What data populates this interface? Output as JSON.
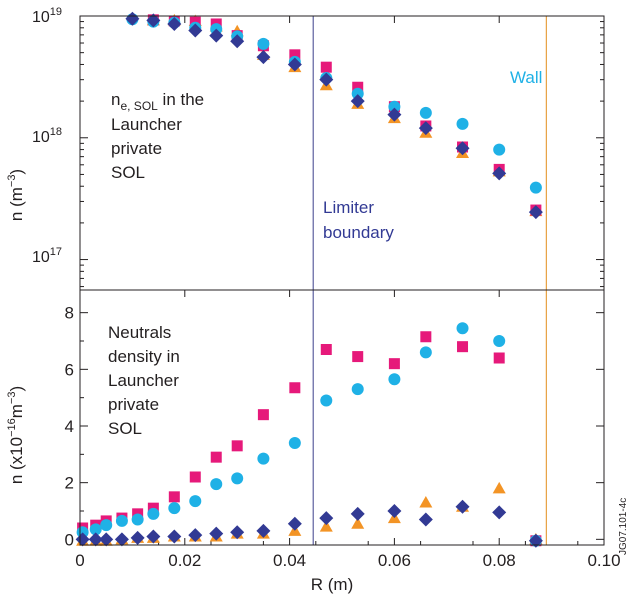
{
  "chart_data": [
    {
      "type": "scatter",
      "yscale": "log",
      "xlim": [
        0,
        0.1
      ],
      "ylim_log10": [
        16.75,
        19
      ],
      "ylabel_base": "n (m",
      "ylabel_exp": "−3",
      "ylabel_end": ")",
      "y_ticks": [
        {
          "base": "10",
          "exp": "19",
          "log": 19
        },
        {
          "base": "10",
          "exp": "18",
          "log": 18
        },
        {
          "base": "10",
          "exp": "17",
          "log": 17
        }
      ],
      "annotation": {
        "line1_main": "n",
        "line1_sub": "e, SOL",
        "line1_rest": " in the",
        "lines": [
          "Launcher",
          "private",
          "SOL"
        ]
      },
      "limiter_label": [
        "Limiter",
        "boundary"
      ],
      "wall_label": "Wall",
      "series": [
        {
          "marker": "square",
          "color": "#e6197a",
          "points": [
            [
              0.014,
              9.3e+18
            ],
            [
              0.018,
              9.1e+18
            ],
            [
              0.022,
              8.9e+18
            ],
            [
              0.026,
              8.6e+18
            ],
            [
              0.03,
              6.9e+18
            ],
            [
              0.035,
              5.7e+18
            ],
            [
              0.041,
              4.8e+18
            ],
            [
              0.047,
              3.8e+18
            ],
            [
              0.053,
              2.6e+18
            ],
            [
              0.06,
              1.8e+18
            ],
            [
              0.066,
              1.25e+18
            ],
            [
              0.073,
              8.4e+17
            ],
            [
              0.08,
              5.5e+17
            ],
            [
              0.087,
              2.55e+17
            ]
          ]
        },
        {
          "marker": "triangle",
          "color": "#f39425",
          "points": [
            [
              0.014,
              9.2e+18
            ],
            [
              0.018,
              9.2e+18
            ],
            [
              0.022,
              9.1e+18
            ],
            [
              0.026,
              8.2e+18
            ],
            [
              0.03,
              7.5e+18
            ],
            [
              0.035,
              4.8e+18
            ],
            [
              0.041,
              3.8e+18
            ],
            [
              0.047,
              2.7e+18
            ],
            [
              0.053,
              1.9e+18
            ],
            [
              0.06,
              1.45e+18
            ],
            [
              0.066,
              1.1e+18
            ],
            [
              0.073,
              7.5e+17
            ],
            [
              0.08,
              5.3e+17
            ],
            [
              0.087,
              2.5e+17
            ]
          ]
        },
        {
          "marker": "circle",
          "color": "#1fb1e6",
          "points": [
            [
              0.01,
              9.4e+18
            ],
            [
              0.014,
              9e+18
            ],
            [
              0.018,
              8.8e+18
            ],
            [
              0.022,
              8e+18
            ],
            [
              0.026,
              7.8e+18
            ],
            [
              0.03,
              6.8e+18
            ],
            [
              0.035,
              5.9e+18
            ],
            [
              0.041,
              4.2e+18
            ],
            [
              0.047,
              3.1e+18
            ],
            [
              0.053,
              2.3e+18
            ],
            [
              0.06,
              1.8e+18
            ],
            [
              0.066,
              1.6e+18
            ],
            [
              0.073,
              1.3e+18
            ],
            [
              0.08,
              8e+17
            ],
            [
              0.087,
              3.9e+17
            ]
          ]
        },
        {
          "marker": "diamond",
          "color": "#323a94",
          "points": [
            [
              0.01,
              9.5e+18
            ],
            [
              0.014,
              9.2e+18
            ],
            [
              0.018,
              8.6e+18
            ],
            [
              0.022,
              7.6e+18
            ],
            [
              0.026,
              6.9e+18
            ],
            [
              0.03,
              6.2e+18
            ],
            [
              0.035,
              4.6e+18
            ],
            [
              0.041,
              4e+18
            ],
            [
              0.047,
              3e+18
            ],
            [
              0.053,
              2e+18
            ],
            [
              0.06,
              1.55e+18
            ],
            [
              0.066,
              1.2e+18
            ],
            [
              0.073,
              8.2e+17
            ],
            [
              0.08,
              5.1e+17
            ],
            [
              0.087,
              2.45e+17
            ]
          ]
        }
      ]
    },
    {
      "type": "scatter",
      "xlim": [
        0,
        0.1
      ],
      "ylim": [
        -0.2,
        8.8
      ],
      "xlabel": "R (m)",
      "x_ticks": [
        "0",
        "0.02",
        "0.04",
        "0.06",
        "0.08",
        "0.10"
      ],
      "y_ticks": [
        "0",
        "2",
        "4",
        "6",
        "8"
      ],
      "ylabel_base": "n (x10",
      "ylabel_exp": "−16",
      "ylabel_mid": "m",
      "ylabel_exp2": "−3",
      "ylabel_end": ")",
      "annotation": [
        "Neutrals",
        "density in",
        "Launcher",
        "private",
        "SOL"
      ],
      "series": [
        {
          "marker": "square",
          "color": "#e6197a",
          "points": [
            [
              0.0005,
              0.4
            ],
            [
              0.003,
              0.5
            ],
            [
              0.005,
              0.65
            ],
            [
              0.008,
              0.75
            ],
            [
              0.011,
              0.9
            ],
            [
              0.014,
              1.1
            ],
            [
              0.018,
              1.5
            ],
            [
              0.022,
              2.2
            ],
            [
              0.026,
              2.9
            ],
            [
              0.03,
              3.3
            ],
            [
              0.035,
              4.4
            ],
            [
              0.041,
              5.35
            ],
            [
              0.047,
              6.7
            ],
            [
              0.053,
              6.45
            ],
            [
              0.06,
              6.2
            ],
            [
              0.066,
              7.15
            ],
            [
              0.073,
              6.8
            ],
            [
              0.08,
              6.4
            ],
            [
              0.087,
              -0.05
            ]
          ]
        },
        {
          "marker": "triangle",
          "color": "#f39425",
          "points": [
            [
              0.0005,
              -0.05
            ],
            [
              0.003,
              -0.05
            ],
            [
              0.005,
              -0.05
            ],
            [
              0.008,
              0.0
            ],
            [
              0.011,
              0.05
            ],
            [
              0.014,
              0.05
            ],
            [
              0.018,
              0.1
            ],
            [
              0.022,
              0.1
            ],
            [
              0.026,
              0.1
            ],
            [
              0.03,
              0.2
            ],
            [
              0.035,
              0.2
            ],
            [
              0.041,
              0.3
            ],
            [
              0.047,
              0.45
            ],
            [
              0.053,
              0.55
            ],
            [
              0.06,
              0.75
            ],
            [
              0.066,
              1.3
            ],
            [
              0.073,
              1.15
            ],
            [
              0.08,
              1.8
            ],
            [
              0.087,
              0.0
            ]
          ]
        },
        {
          "marker": "circle",
          "color": "#1fb1e6",
          "points": [
            [
              0.0005,
              0.25
            ],
            [
              0.003,
              0.35
            ],
            [
              0.005,
              0.5
            ],
            [
              0.008,
              0.65
            ],
            [
              0.011,
              0.7
            ],
            [
              0.014,
              0.9
            ],
            [
              0.018,
              1.1
            ],
            [
              0.022,
              1.35
            ],
            [
              0.026,
              1.95
            ],
            [
              0.03,
              2.15
            ],
            [
              0.035,
              2.85
            ],
            [
              0.041,
              3.4
            ],
            [
              0.047,
              4.9
            ],
            [
              0.053,
              5.3
            ],
            [
              0.06,
              5.65
            ],
            [
              0.066,
              6.6
            ],
            [
              0.073,
              7.45
            ],
            [
              0.08,
              7.0
            ],
            [
              0.087,
              -0.05
            ]
          ]
        },
        {
          "marker": "diamond",
          "color": "#323a94",
          "points": [
            [
              0.0005,
              0.0
            ],
            [
              0.003,
              0.0
            ],
            [
              0.005,
              0.0
            ],
            [
              0.008,
              0.0
            ],
            [
              0.011,
              0.05
            ],
            [
              0.014,
              0.1
            ],
            [
              0.018,
              0.1
            ],
            [
              0.022,
              0.15
            ],
            [
              0.026,
              0.2
            ],
            [
              0.03,
              0.25
            ],
            [
              0.035,
              0.3
            ],
            [
              0.041,
              0.55
            ],
            [
              0.047,
              0.75
            ],
            [
              0.053,
              0.9
            ],
            [
              0.06,
              1.0
            ],
            [
              0.066,
              0.7
            ],
            [
              0.073,
              1.15
            ],
            [
              0.08,
              0.95
            ],
            [
              0.087,
              -0.05
            ]
          ]
        }
      ]
    }
  ],
  "limiter_line": {
    "x": 0.0445,
    "color": "#3b3f8c"
  },
  "wall_line": {
    "x": 0.089,
    "color": "#e8a040"
  },
  "colors": {
    "frame": "#231f20",
    "wall_text": "#1fb1e6",
    "limiter_text": "#323a94"
  },
  "figure_id": "JG07.101-4c"
}
